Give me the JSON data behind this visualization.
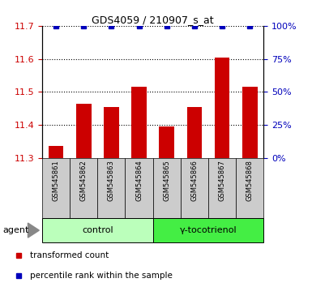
{
  "title": "GDS4059 / 210907_s_at",
  "samples": [
    "GSM545861",
    "GSM545862",
    "GSM545863",
    "GSM545864",
    "GSM545865",
    "GSM545866",
    "GSM545867",
    "GSM545868"
  ],
  "bar_values": [
    11.335,
    11.465,
    11.455,
    11.515,
    11.395,
    11.455,
    11.605,
    11.515
  ],
  "percentile_values": [
    100,
    100,
    100,
    100,
    100,
    100,
    100,
    100
  ],
  "ylim_left": [
    11.3,
    11.7
  ],
  "ylim_right": [
    0,
    100
  ],
  "yticks_left": [
    11.3,
    11.4,
    11.5,
    11.6,
    11.7
  ],
  "yticks_right": [
    0,
    25,
    50,
    75,
    100
  ],
  "bar_color": "#cc0000",
  "dot_color": "#0000bb",
  "groups": [
    {
      "label": "control",
      "indices": [
        0,
        1,
        2,
        3
      ],
      "color": "#bbffbb"
    },
    {
      "label": "γ-tocotrienol",
      "indices": [
        4,
        5,
        6,
        7
      ],
      "color": "#44ee44"
    }
  ],
  "agent_label": "agent",
  "legend_items": [
    {
      "color": "#cc0000",
      "label": "transformed count"
    },
    {
      "color": "#0000bb",
      "label": "percentile rank within the sample"
    }
  ],
  "sample_area_color": "#cccccc"
}
